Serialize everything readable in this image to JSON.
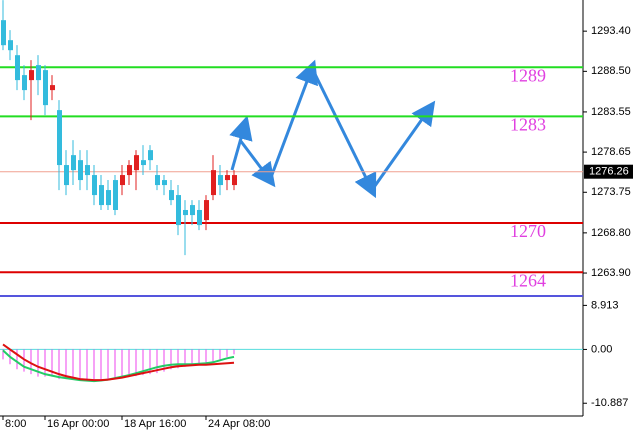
{
  "chart_data": {
    "type": "candlestick",
    "up_color": "#e02020",
    "down_color": "#33bbdd",
    "open": [
      1294.74,
      1292.3,
      1290.47,
      1288.04,
      1287.43,
      1289.26,
      1288.65,
      1286.21,
      1283.77,
      1277.07,
      1278.28,
      1277.67,
      1277.07,
      1275.85,
      1274.63,
      1274.02,
      1275.24,
      1274.63,
      1275.85,
      1276.45,
      1277.67,
      1278.89,
      1275.85,
      1275.24,
      1274.02,
      1273.41,
      1271.59,
      1272.19,
      1271.59,
      1270.36,
      1273.41,
      1275.85,
      1275.24,
      1274.63
    ],
    "high": [
      1297.18,
      1293.52,
      1291.69,
      1289.26,
      1289.86,
      1290.47,
      1289.26,
      1288.04,
      1284.99,
      1278.89,
      1280.11,
      1278.89,
      1278.89,
      1277.07,
      1275.85,
      1275.24,
      1275.85,
      1277.07,
      1277.67,
      1278.89,
      1279.5,
      1279.5,
      1277.07,
      1275.85,
      1275.24,
      1274.63,
      1272.8,
      1272.8,
      1272.8,
      1273.41,
      1278.28,
      1277.07,
      1276.45,
      1276.45
    ],
    "low": [
      1291.08,
      1289.86,
      1286.21,
      1284.99,
      1282.55,
      1285.6,
      1283.16,
      1284.99,
      1274.02,
      1273.41,
      1274.63,
      1274.02,
      1274.02,
      1272.19,
      1271.59,
      1271.59,
      1270.97,
      1273.41,
      1274.63,
      1274.02,
      1275.85,
      1276.45,
      1274.02,
      1273.41,
      1272.19,
      1268.53,
      1266.09,
      1269.75,
      1269.14,
      1269.14,
      1272.8,
      1273.41,
      1274.02,
      1274.02
    ],
    "close": [
      1291.69,
      1291.08,
      1287.43,
      1286.21,
      1288.65,
      1287.43,
      1284.38,
      1286.82,
      1277.07,
      1274.63,
      1276.45,
      1275.24,
      1275.85,
      1273.41,
      1272.19,
      1272.19,
      1271.59,
      1275.85,
      1277.07,
      1278.28,
      1277.07,
      1277.67,
      1274.63,
      1274.63,
      1272.8,
      1269.75,
      1270.97,
      1270.97,
      1269.75,
      1272.8,
      1276.45,
      1274.63,
      1275.85,
      1275.85
    ],
    "ylim": [
      1261.1,
      1297.2
    ],
    "yticks": [
      {
        "value": 1293.4,
        "label": "1293.40"
      },
      {
        "value": 1288.5,
        "label": "1288.50"
      },
      1283.55,
      1278.65,
      1273.75,
      {
        "value": 1268.8,
        "label": "1268.80"
      },
      {
        "value": 1263.9,
        "label": "1263.90"
      }
    ],
    "current_price": 1276.26,
    "levels": [
      {
        "value": 1289,
        "color": "#22dd22"
      },
      {
        "value": 1283,
        "color": "#22dd22"
      },
      {
        "value": 1270,
        "color": "#dd0000"
      },
      {
        "value": 1264,
        "color": "#dd0000"
      }
    ],
    "xticks": [
      {
        "value": 0,
        "label": "8:00"
      },
      {
        "value": 6,
        "label": "16 Apr 00:00"
      },
      {
        "value": 17,
        "label": "18 Apr 16:00"
      },
      {
        "value": 29,
        "label": "24 Apr 08:00"
      }
    ],
    "indicator": {
      "ylim": [
        -13.47,
        10.61
      ],
      "yticks": [
        8.913,
        {
          "value": 0,
          "label": "0.00"
        },
        -10.887
      ],
      "histogram": {
        "color": "#ee44ee",
        "values": [
          -2,
          -3,
          -4,
          -4.5,
          -5,
          -5.5,
          -5.5,
          -5.5,
          -6,
          -6,
          -6,
          -6,
          -6,
          -6,
          -6,
          -6,
          -6,
          -5.8,
          -5.6,
          -5.4,
          -5.2,
          -5,
          -4.8,
          -4.5,
          -4,
          -3.8,
          -3.5,
          -3.2,
          -3,
          -2.8,
          -2.5,
          -2,
          -1.5,
          -1
        ]
      },
      "series": [
        {
          "color": "#22cc66",
          "values": [
            -0.2,
            -1.5,
            -2.5,
            -3.5,
            -4,
            -4.5,
            -5,
            -5.3,
            -5.6,
            -5.8,
            -6,
            -6.2,
            -6.3,
            -6.4,
            -6.3,
            -6.1,
            -5.8,
            -5.5,
            -5.2,
            -4.8,
            -4.4,
            -4,
            -3.6,
            -3.3,
            -3.1,
            -3,
            -3,
            -3,
            -2.9,
            -2.8,
            -2.6,
            -2.2,
            -1.8,
            -1.5
          ]
        },
        {
          "color": "#dd1111",
          "values": [
            1,
            0,
            -1,
            -2,
            -2.8,
            -3.5,
            -4,
            -4.5,
            -5,
            -5.4,
            -5.7,
            -6,
            -6.1,
            -6.2,
            -6.2,
            -6.1,
            -5.9,
            -5.7,
            -5.4,
            -5.1,
            -4.8,
            -4.5,
            -4.2,
            -3.9,
            -3.6,
            -3.4,
            -3.3,
            -3.2,
            -3.1,
            -3.1,
            -3,
            -2.9,
            -2.8,
            -2.7
          ]
        }
      ]
    }
  }
}
